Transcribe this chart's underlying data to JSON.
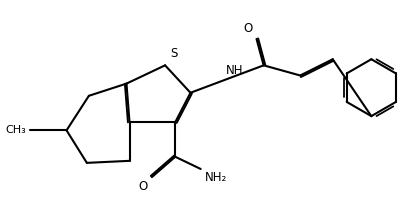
{
  "bg_color": "#ffffff",
  "line_color": "#000000",
  "line_width": 1.5,
  "figsize": [
    4.14,
    2.16
  ],
  "dpi": 100,
  "S_label": "S",
  "NH_label": "NH",
  "O_label": "O",
  "NH2_label": "NH₂",
  "font_size": 8.5
}
